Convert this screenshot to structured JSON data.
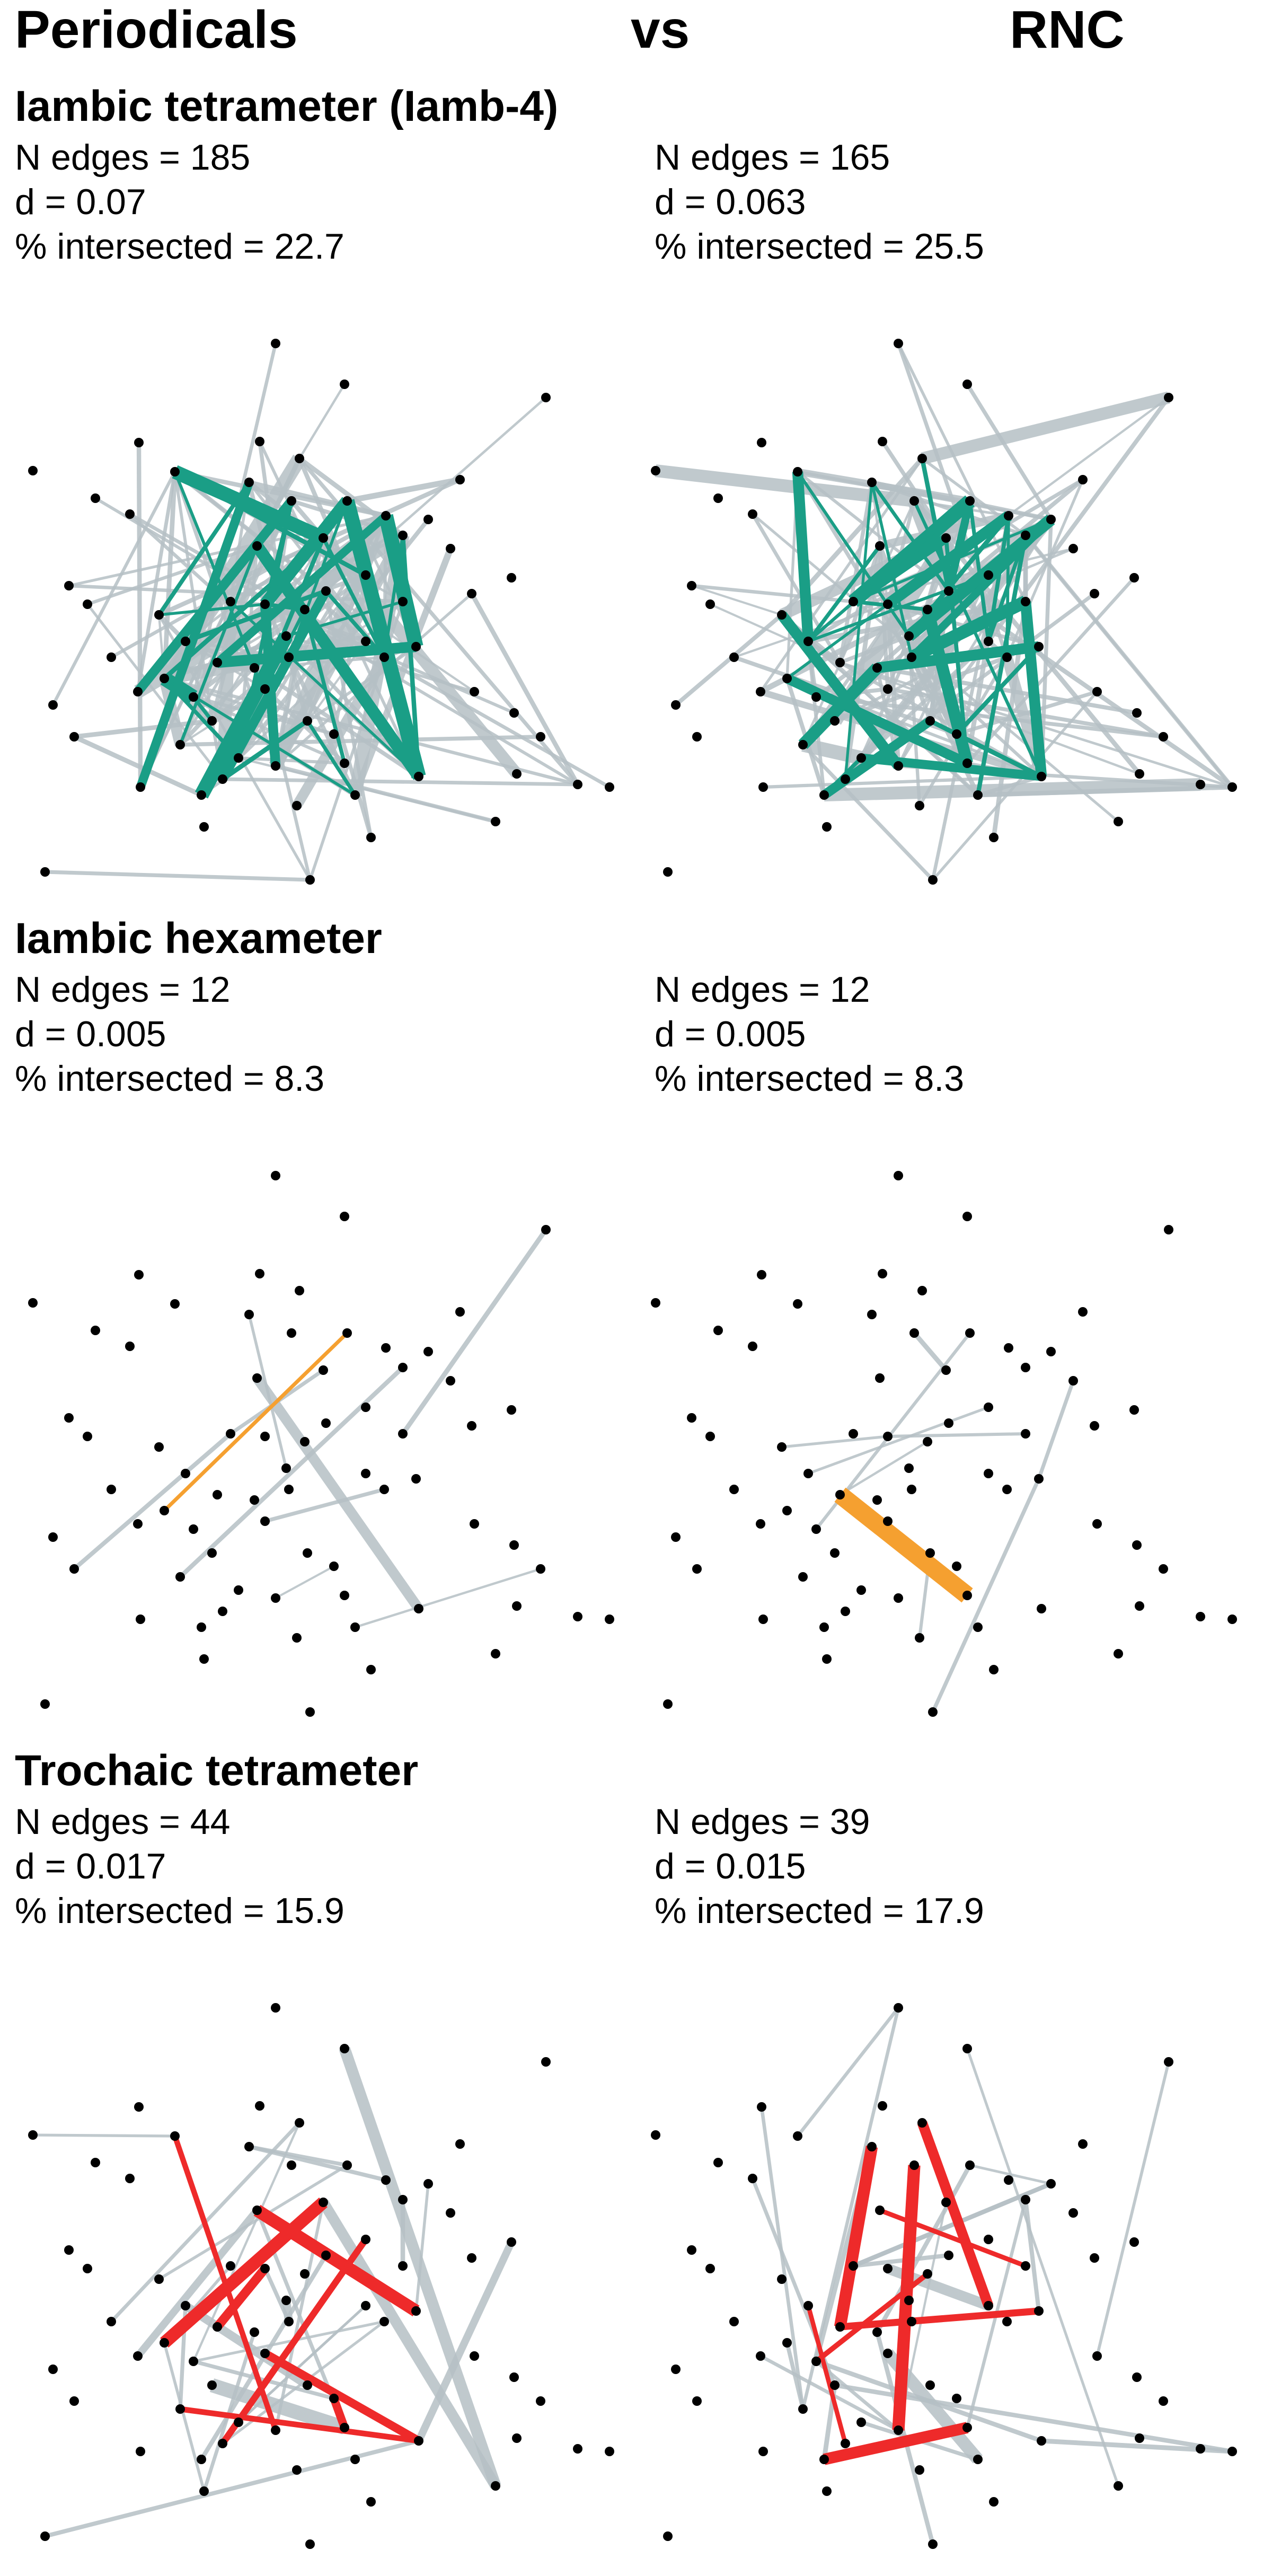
{
  "header": {
    "left": "Periodicals",
    "middle": "vs",
    "right": "RNC"
  },
  "colors": {
    "edge": "#b5c0c4",
    "node": "#000000",
    "iambic_tetrameter": "#1a9e86",
    "iambic_hexameter": "#f5a030",
    "trochaic_tetrameter": "#ee2a2a"
  },
  "sections": [
    {
      "title": "Iambic tetrameter (Iamb-4)",
      "left": {
        "n_edges": "N edges = 185",
        "d": "d = 0.07",
        "pct": "% intersected = 22.7"
      },
      "right": {
        "n_edges": "N edges = 165",
        "d": "d = 0.063",
        "pct": "% intersected = 25.5"
      }
    },
    {
      "title": "Iambic hexameter",
      "left": {
        "n_edges": "N edges = 12",
        "d": "d = 0.005",
        "pct": "% intersected = 8.3"
      },
      "right": {
        "n_edges": "N edges = 12",
        "d": "d = 0.005",
        "pct": "% intersected = 8.3"
      }
    },
    {
      "title": "Trochaic tetrameter",
      "left": {
        "n_edges": "N edges = 44",
        "d": "d = 0.017",
        "pct": "% intersected = 15.9"
      },
      "right": {
        "n_edges": "N edges = 39",
        "d": "d = 0.015",
        "pct": "% intersected = 17.9"
      }
    }
  ]
}
